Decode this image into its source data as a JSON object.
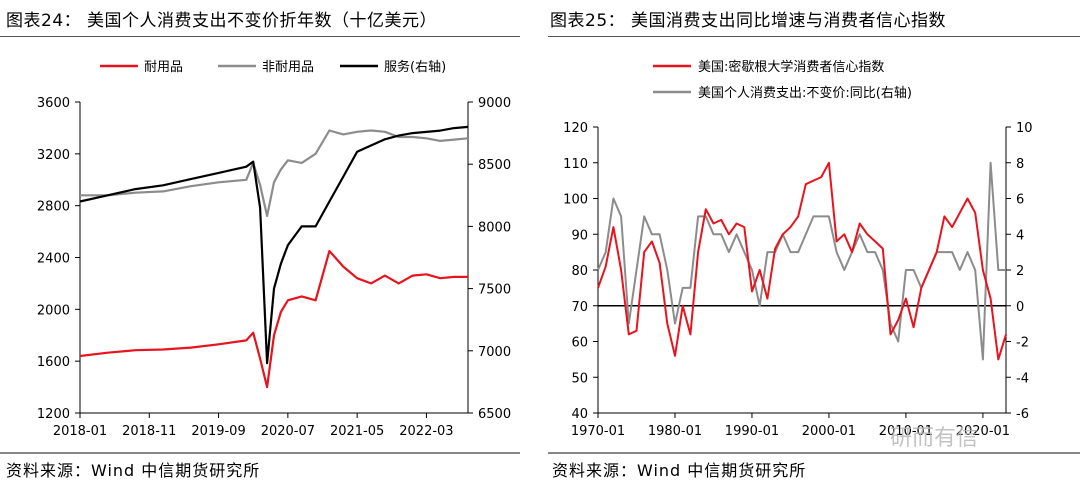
{
  "left": {
    "title": "图表24：  美国个人消费支出不变价折年数（十亿美元）",
    "source": "资料来源：Wind 中信期货研究所",
    "chart_data": {
      "type": "line",
      "x": [
        "2018-01",
        "2018-05",
        "2018-09",
        "2019-01",
        "2019-05",
        "2019-09",
        "2020-01",
        "2020-02",
        "2020-03",
        "2020-04",
        "2020-05",
        "2020-06",
        "2020-07",
        "2020-09",
        "2020-11",
        "2021-01",
        "2021-03",
        "2021-05",
        "2021-07",
        "2021-09",
        "2021-11",
        "2022-01",
        "2022-03",
        "2022-05",
        "2022-07",
        "2022-09"
      ],
      "xticks": [
        "2018-01",
        "2018-11",
        "2019-09",
        "2020-07",
        "2021-05",
        "2022-03"
      ],
      "left_axis": {
        "min": 1200,
        "max": 3600,
        "ticks": [
          1200,
          1600,
          2000,
          2400,
          2800,
          3200,
          3600
        ]
      },
      "right_axis": {
        "min": 6500,
        "max": 9000,
        "ticks": [
          6500,
          7000,
          7500,
          8000,
          8500,
          9000
        ]
      },
      "series": [
        {
          "name": "耐用品",
          "color": "#e8131d",
          "axis": "left",
          "values": [
            1640,
            1665,
            1685,
            1690,
            1705,
            1730,
            1760,
            1820,
            1620,
            1400,
            1800,
            1980,
            2070,
            2100,
            2070,
            2450,
            2330,
            2240,
            2200,
            2260,
            2200,
            2260,
            2270,
            2240,
            2250,
            2250
          ]
        },
        {
          "name": "非耐用品",
          "color": "#8c8c8c",
          "axis": "left",
          "values": [
            2880,
            2880,
            2900,
            2910,
            2950,
            2980,
            3000,
            3130,
            2960,
            2720,
            2980,
            3080,
            3150,
            3130,
            3200,
            3380,
            3350,
            3370,
            3380,
            3370,
            3330,
            3330,
            3320,
            3300,
            3310,
            3320
          ]
        },
        {
          "name": "服务(右轴)",
          "color": "#000000",
          "axis": "right",
          "values": [
            8200,
            8250,
            8300,
            8330,
            8380,
            8430,
            8480,
            8520,
            8150,
            6900,
            7500,
            7700,
            7850,
            8000,
            8000,
            8200,
            8400,
            8600,
            8650,
            8700,
            8730,
            8750,
            8760,
            8770,
            8790,
            8800
          ]
        }
      ]
    }
  },
  "right": {
    "title": "图表25：  美国消费支出同比增速与消费者信心指数",
    "source": "资料来源：Wind 中信期货研究所",
    "watermark": "研而有信",
    "chart_data": {
      "type": "line",
      "xticks": [
        "1970-01",
        "1980-01",
        "1990-01",
        "2000-01",
        "2010-01",
        "2020-01"
      ],
      "x_range": [
        1970,
        2023
      ],
      "left_axis": {
        "min": 40,
        "max": 120,
        "ticks": [
          40,
          50,
          60,
          70,
          80,
          90,
          100,
          110,
          120
        ]
      },
      "right_axis": {
        "min": -6,
        "max": 10,
        "ticks": [
          -6,
          -4,
          -2,
          0,
          2,
          4,
          6,
          8,
          10
        ]
      },
      "reference_line": {
        "axis": "right",
        "value": 0
      },
      "series": [
        {
          "name": "美国:密歇根大学消费者信心指数",
          "color": "#e8131d",
          "axis": "left",
          "x": [
            1970,
            1971,
            1972,
            1973,
            1974,
            1975,
            1976,
            1977,
            1978,
            1979,
            1980,
            1981,
            1982,
            1983,
            1984,
            1985,
            1986,
            1987,
            1988,
            1989,
            1990,
            1991,
            1992,
            1993,
            1994,
            1995,
            1996,
            1997,
            1998,
            1999,
            2000,
            2001,
            2002,
            2003,
            2004,
            2005,
            2006,
            2007,
            2008,
            2009,
            2010,
            2011,
            2012,
            2013,
            2014,
            2015,
            2016,
            2017,
            2018,
            2019,
            2020,
            2021,
            2022,
            2023
          ],
          "y": [
            75,
            81,
            92,
            80,
            62,
            63,
            85,
            88,
            82,
            65,
            56,
            70,
            62,
            85,
            97,
            93,
            94,
            90,
            93,
            92,
            74,
            80,
            72,
            86,
            90,
            92,
            95,
            104,
            105,
            106,
            110,
            88,
            90,
            85,
            93,
            90,
            88,
            86,
            62,
            66,
            72,
            64,
            75,
            80,
            85,
            95,
            92,
            96,
            100,
            96,
            80,
            72,
            55,
            62
          ]
        },
        {
          "name": "美国个人消费支出:不变价:同比(右轴)",
          "color": "#8c8c8c",
          "axis": "right",
          "x": [
            1970,
            1971,
            1972,
            1973,
            1974,
            1975,
            1976,
            1977,
            1978,
            1979,
            1980,
            1981,
            1982,
            1983,
            1984,
            1985,
            1986,
            1987,
            1988,
            1989,
            1990,
            1991,
            1992,
            1993,
            1994,
            1995,
            1996,
            1997,
            1998,
            1999,
            2000,
            2001,
            2002,
            2003,
            2004,
            2005,
            2006,
            2007,
            2008,
            2009,
            2010,
            2011,
            2012,
            2013,
            2014,
            2015,
            2016,
            2017,
            2018,
            2019,
            2020,
            2021,
            2022,
            2023
          ],
          "y": [
            2,
            3,
            6,
            5,
            -1,
            2,
            5,
            4,
            4,
            2,
            -1,
            1,
            1,
            5,
            5,
            4,
            4,
            3,
            4,
            3,
            2,
            0,
            3,
            3,
            4,
            3,
            3,
            4,
            5,
            5,
            5,
            3,
            2,
            3,
            4,
            3,
            3,
            2,
            -1,
            -2,
            2,
            2,
            1,
            2,
            3,
            3,
            3,
            2,
            3,
            2,
            -3,
            8,
            2,
            2
          ]
        }
      ]
    }
  }
}
